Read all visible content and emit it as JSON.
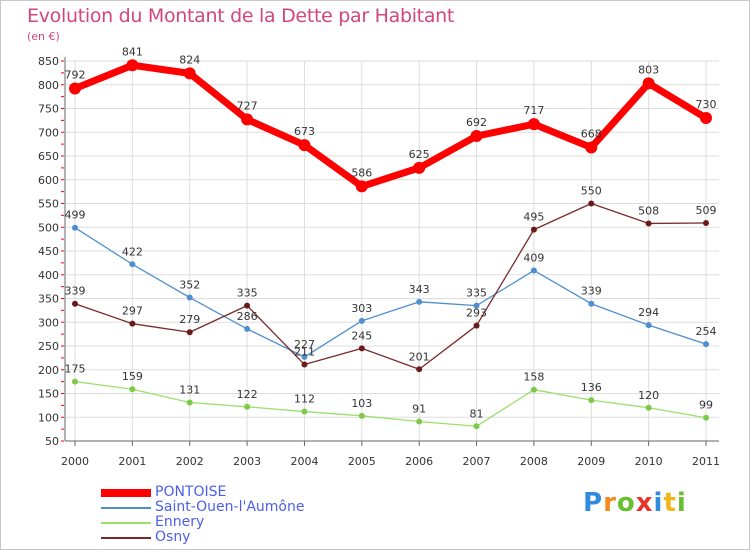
{
  "title": "Evolution du Montant de la Dette par Habitant",
  "unit_label": "(en €)",
  "logo_text": "Proxiti",
  "chart_data": {
    "type": "line",
    "title": "Evolution du Montant de la Dette par Habitant",
    "subtitle": "(en €)",
    "x": [
      "2000",
      "2001",
      "2002",
      "2003",
      "2004",
      "2005",
      "2006",
      "2007",
      "2008",
      "2009",
      "2010",
      "2011"
    ],
    "ylim": [
      50,
      850
    ],
    "yticks": [
      50,
      100,
      150,
      200,
      250,
      300,
      350,
      400,
      450,
      500,
      550,
      600,
      650,
      700,
      750,
      800,
      850
    ],
    "grid": true,
    "legend_position": "bottom-left",
    "series": [
      {
        "name": "PONTOISE",
        "color": "#ff0000",
        "thick": true,
        "values": [
          792,
          841,
          824,
          727,
          673,
          586,
          625,
          692,
          717,
          668,
          803,
          730
        ]
      },
      {
        "name": "Saint-Ouen-l'Aumône",
        "color": "#4f8fd0",
        "marker": "#4f8fd0",
        "values": [
          499,
          422,
          352,
          286,
          227,
          303,
          343,
          335,
          409,
          339,
          294,
          254
        ]
      },
      {
        "name": "Ennery",
        "color": "#9be06a",
        "marker": "#7fc94a",
        "values": [
          175,
          159,
          131,
          122,
          112,
          103,
          91,
          81,
          158,
          136,
          120,
          99
        ]
      },
      {
        "name": "Osny",
        "color": "#7a2a2a",
        "marker": "#6b1a1a",
        "values": [
          339,
          297,
          279,
          335,
          211,
          245,
          201,
          293,
          495,
          550,
          508,
          509
        ]
      }
    ]
  }
}
